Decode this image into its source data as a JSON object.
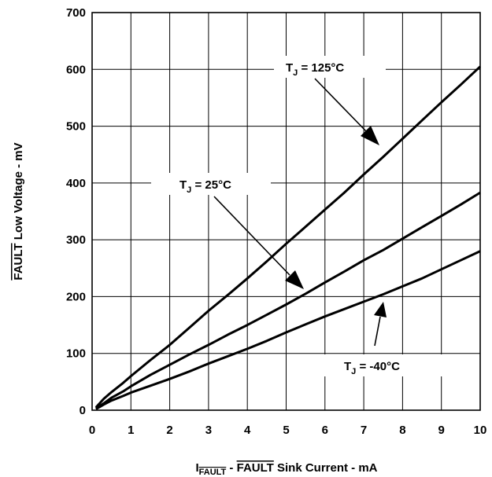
{
  "chart_data": {
    "type": "line",
    "title": "",
    "xlabel": {
      "prefix": "I",
      "subscript": "FAULT",
      "middle": " - ",
      "overline": "FAULT",
      "suffix": " Sink Current - mA"
    },
    "ylabel": {
      "overline": "FAULT",
      "suffix": " Low Voltage - mV"
    },
    "xlim": [
      0,
      10
    ],
    "ylim": [
      0,
      700
    ],
    "xticks": [
      "0",
      "1",
      "2",
      "3",
      "4",
      "5",
      "6",
      "7",
      "8",
      "9",
      "10"
    ],
    "yticks": [
      "0",
      "100",
      "200",
      "300",
      "400",
      "500",
      "600",
      "700"
    ],
    "grid": true,
    "line_color": "#000000",
    "series": [
      {
        "name": "125°C",
        "annotation": {
          "prefix": "T",
          "subscript": "J",
          "suffix": " = 125°C"
        },
        "x": [
          0.1,
          0.3,
          0.5,
          0.8,
          1.0,
          1.5,
          2.0,
          2.5,
          3.0,
          3.5,
          4.0,
          4.5,
          5.0,
          5.5,
          6.0,
          6.5,
          7.0,
          7.5,
          8.0,
          8.5,
          9.0,
          9.5,
          10.0
        ],
        "y": [
          5,
          20,
          32,
          48,
          60,
          88,
          115,
          145,
          175,
          203,
          232,
          262,
          293,
          323,
          353,
          383,
          415,
          446,
          478,
          510,
          542,
          573,
          605
        ]
      },
      {
        "name": "25°C",
        "annotation": {
          "prefix": "T",
          "subscript": "J",
          "suffix": " = 25°C"
        },
        "x": [
          0.1,
          0.3,
          0.5,
          0.8,
          1.0,
          1.5,
          2.0,
          2.5,
          3.0,
          3.5,
          4.0,
          4.5,
          5.0,
          5.5,
          6.0,
          6.5,
          7.0,
          7.5,
          8.0,
          8.5,
          9.0,
          9.5,
          10.0
        ],
        "y": [
          3,
          12,
          22,
          33,
          42,
          62,
          80,
          98,
          115,
          133,
          150,
          168,
          186,
          205,
          225,
          244,
          264,
          282,
          302,
          322,
          342,
          362,
          383
        ]
      },
      {
        "name": "-40°C",
        "annotation": {
          "prefix": "T",
          "subscript": "J",
          "suffix": " = -40°C"
        },
        "x": [
          0.1,
          0.3,
          0.5,
          0.8,
          1.0,
          1.5,
          2.0,
          2.5,
          3.0,
          3.5,
          4.0,
          4.5,
          5.0,
          5.5,
          6.0,
          6.5,
          7.0,
          7.5,
          8.0,
          8.5,
          9.0,
          9.5,
          10.0
        ],
        "y": [
          2,
          10,
          17,
          25,
          31,
          43,
          55,
          68,
          82,
          95,
          108,
          122,
          137,
          151,
          165,
          178,
          191,
          204,
          218,
          232,
          248,
          264,
          280
        ]
      }
    ]
  }
}
